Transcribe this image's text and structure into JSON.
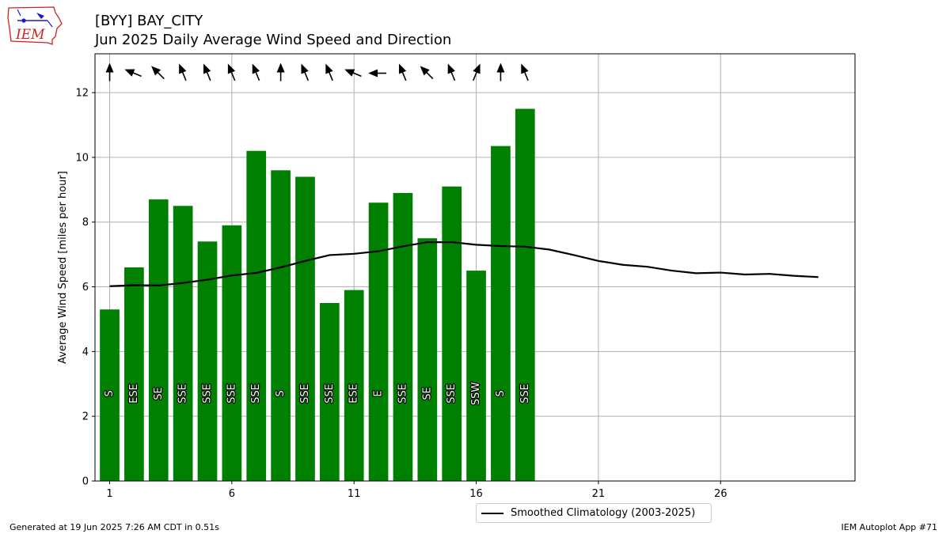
{
  "header": {
    "title_line1": "[BYY] BAY_CITY",
    "title_line2": "Jun 2025 Daily Average Wind Speed and Direction",
    "logo_text": "IEM"
  },
  "footer": {
    "left": "Generated at 19 Jun 2025 7:26 AM CDT in 0.51s",
    "right": "IEM Autoplot App #71"
  },
  "legend": {
    "label": "Smoothed Climatology (2003-2025)"
  },
  "colors": {
    "bar": "#008000",
    "climo_line": "#000000",
    "grid": "#b0b0b0",
    "logo_red": "#cc2222",
    "logo_blue": "#1a1acc"
  },
  "chart_data": {
    "type": "bar",
    "title": "[BYY] BAY_CITY\nJun 2025 Daily Average Wind Speed and Direction",
    "ylabel": "Average Wind Speed [miles per hour]",
    "xlabel": "",
    "xlim": [
      0.4,
      31.5
    ],
    "ylim": [
      0,
      13.2
    ],
    "xticks": [
      1,
      6,
      11,
      16,
      21,
      26
    ],
    "yticks": [
      0,
      2,
      4,
      6,
      8,
      10,
      12
    ],
    "grid": true,
    "legend_position": "bottom-center, below plot",
    "days": [
      1,
      2,
      3,
      4,
      5,
      6,
      7,
      8,
      9,
      10,
      11,
      12,
      13,
      14,
      15,
      16,
      17,
      18
    ],
    "speeds": [
      5.3,
      6.6,
      8.7,
      8.5,
      7.4,
      7.9,
      10.2,
      9.6,
      9.4,
      5.5,
      5.9,
      8.6,
      8.9,
      7.5,
      9.1,
      6.5,
      10.35,
      11.5
    ],
    "directions": [
      "S",
      "ESE",
      "SE",
      "SSE",
      "SSE",
      "SSE",
      "SSE",
      "S",
      "SSE",
      "SSE",
      "ESE",
      "E",
      "SSE",
      "SE",
      "SSE",
      "SSW",
      "S",
      "SSE"
    ],
    "climatology": {
      "name": "Smoothed Climatology (2003-2025)",
      "x": [
        1,
        2,
        3,
        4,
        5,
        6,
        7,
        8,
        9,
        10,
        11,
        12,
        13,
        14,
        15,
        16,
        17,
        18,
        19,
        20,
        21,
        22,
        23,
        24,
        25,
        26,
        27,
        28,
        29,
        30
      ],
      "y": [
        6.02,
        6.05,
        6.04,
        6.12,
        6.22,
        6.35,
        6.43,
        6.6,
        6.8,
        6.98,
        7.02,
        7.1,
        7.25,
        7.38,
        7.38,
        7.3,
        7.26,
        7.24,
        7.15,
        6.98,
        6.8,
        6.68,
        6.62,
        6.5,
        6.42,
        6.44,
        6.38,
        6.4,
        6.34,
        6.3
      ]
    }
  }
}
